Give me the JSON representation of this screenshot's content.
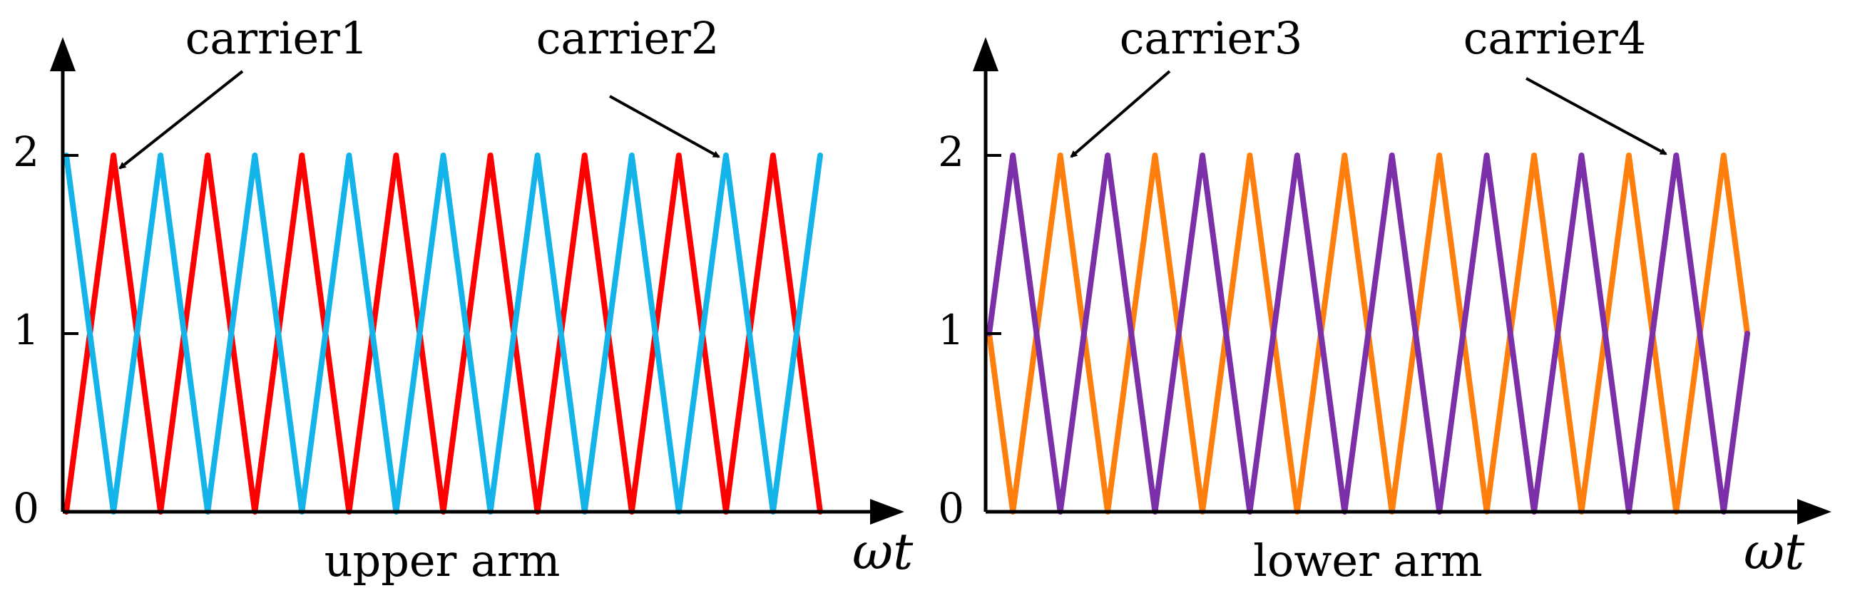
{
  "chart_data": [
    {
      "type": "line",
      "title": "",
      "xlabel": "upper arm",
      "axis_name": "ωt",
      "yticks": [
        "0",
        "1",
        "2"
      ],
      "ylim": [
        0,
        2
      ],
      "grid": false,
      "series": [
        {
          "name": "carrier1",
          "color": "#ff0000",
          "x": [
            0,
            0.5,
            1,
            1.5,
            2,
            2.5,
            3,
            3.5,
            4,
            4.5,
            5,
            5.5,
            6,
            6.5,
            7,
            7.5,
            8
          ],
          "y": [
            0,
            2,
            0,
            2,
            0,
            2,
            0,
            2,
            0,
            2,
            0,
            2,
            0,
            2,
            0,
            2,
            0
          ]
        },
        {
          "name": "carrier2",
          "color": "#14b4ea",
          "x": [
            0,
            0.5,
            1,
            1.5,
            2,
            2.5,
            3,
            3.5,
            4,
            4.5,
            5,
            5.5,
            6,
            6.5,
            7,
            7.5,
            8
          ],
          "y": [
            2,
            0,
            2,
            0,
            2,
            0,
            2,
            0,
            2,
            0,
            2,
            0,
            2,
            0,
            2,
            0,
            2
          ]
        }
      ]
    },
    {
      "type": "line",
      "title": "",
      "xlabel": "lower arm",
      "axis_name": "ωt",
      "yticks": [
        "0",
        "1",
        "2"
      ],
      "ylim": [
        0,
        2
      ],
      "grid": false,
      "series": [
        {
          "name": "carrier3",
          "color": "#ff7f0e",
          "x": [
            0,
            0.25,
            0.75,
            1.25,
            1.75,
            2.25,
            2.75,
            3.25,
            3.75,
            4.25,
            4.75,
            5.25,
            5.75,
            6.25,
            6.75,
            7.25,
            7.75,
            8
          ],
          "y": [
            1,
            0,
            2,
            0,
            2,
            0,
            2,
            0,
            2,
            0,
            2,
            0,
            2,
            0,
            2,
            0,
            2,
            1
          ]
        },
        {
          "name": "carrier4",
          "color": "#7b2fa8",
          "x": [
            0,
            0.25,
            0.75,
            1.25,
            1.75,
            2.25,
            2.75,
            3.25,
            3.75,
            4.25,
            4.75,
            5.25,
            5.75,
            6.25,
            6.75,
            7.25,
            7.75,
            8
          ],
          "y": [
            1,
            2,
            0,
            2,
            0,
            2,
            0,
            2,
            0,
            2,
            0,
            2,
            0,
            2,
            0,
            2,
            0,
            1
          ]
        }
      ]
    }
  ]
}
